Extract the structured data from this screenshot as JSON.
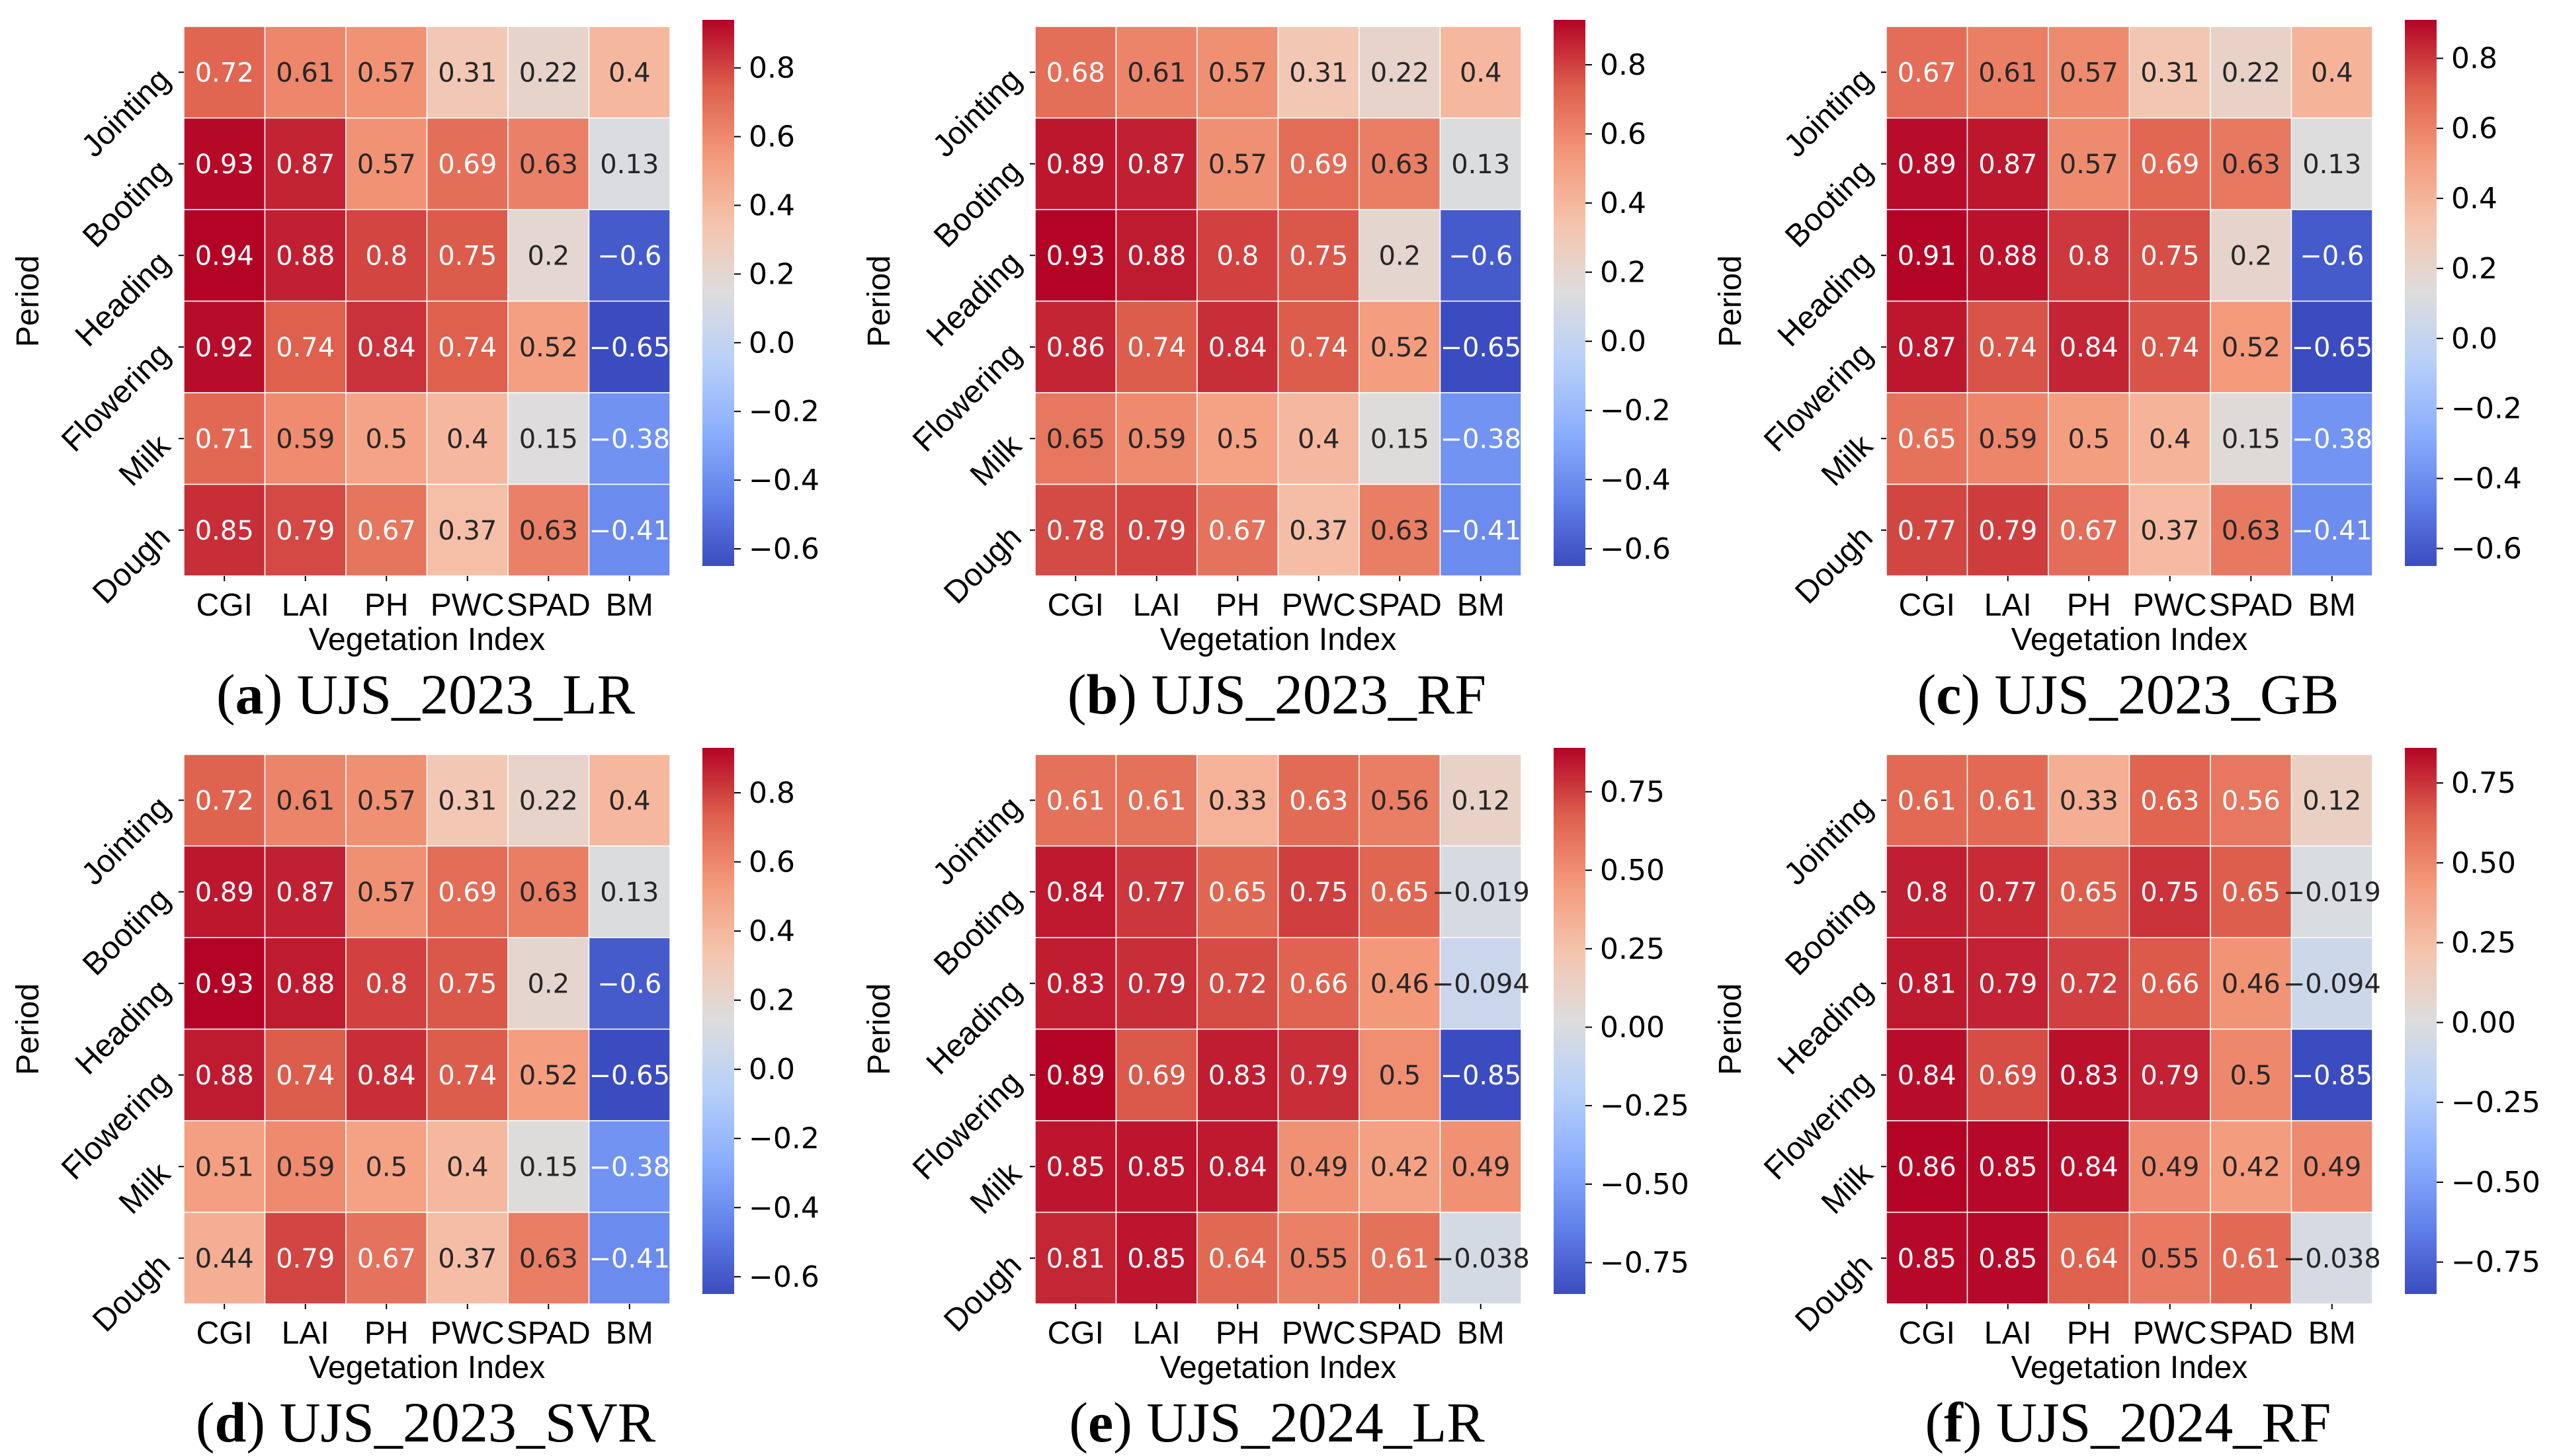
{
  "chart_data": [
    {
      "type": "heatmap",
      "caption_letter": "a",
      "caption_text": "UJS_2023_LR",
      "xlabel": "Vegetation Index",
      "ylabel": "Period",
      "columns": [
        "CGI",
        "LAI",
        "PH",
        "PWC",
        "SPAD",
        "BM"
      ],
      "rows": [
        "Jointing",
        "Booting",
        "Heading",
        "Flowering",
        "Milk",
        "Dough"
      ],
      "values": [
        [
          "0.72",
          "0.61",
          "0.57",
          "0.31",
          "0.22",
          "0.4"
        ],
        [
          "0.93",
          "0.87",
          "0.57",
          "0.69",
          "0.63",
          "0.13"
        ],
        [
          "0.94",
          "0.88",
          "0.8",
          "0.75",
          "0.2",
          "-0.6"
        ],
        [
          "0.92",
          "0.74",
          "0.84",
          "0.74",
          "0.52",
          "-0.65"
        ],
        [
          "0.71",
          "0.59",
          "0.5",
          "0.4",
          "0.15",
          "-0.38"
        ],
        [
          "0.85",
          "0.79",
          "0.67",
          "0.37",
          "0.63",
          "-0.41"
        ]
      ],
      "vmin": -0.65,
      "vmax": 0.94,
      "colorbar_ticks": [
        0.8,
        0.6,
        0.4,
        0.2,
        0.0,
        -0.2,
        -0.4,
        -0.6
      ],
      "colorbar_tick_labels": [
        "0.8",
        "0.6",
        "0.4",
        "0.2",
        "0.0",
        "−0.2",
        "−0.4",
        "−0.6"
      ]
    },
    {
      "type": "heatmap",
      "caption_letter": "b",
      "caption_text": "UJS_2023_RF",
      "xlabel": "Vegetation Index",
      "ylabel": "Period",
      "columns": [
        "CGI",
        "LAI",
        "PH",
        "PWC",
        "SPAD",
        "BM"
      ],
      "rows": [
        "Jointing",
        "Booting",
        "Heading",
        "Flowering",
        "Milk",
        "Dough"
      ],
      "values": [
        [
          "0.68",
          "0.61",
          "0.57",
          "0.31",
          "0.22",
          "0.4"
        ],
        [
          "0.89",
          "0.87",
          "0.57",
          "0.69",
          "0.63",
          "0.13"
        ],
        [
          "0.93",
          "0.88",
          "0.8",
          "0.75",
          "0.2",
          "-0.6"
        ],
        [
          "0.86",
          "0.74",
          "0.84",
          "0.74",
          "0.52",
          "-0.65"
        ],
        [
          "0.65",
          "0.59",
          "0.5",
          "0.4",
          "0.15",
          "-0.38"
        ],
        [
          "0.78",
          "0.79",
          "0.67",
          "0.37",
          "0.63",
          "-0.41"
        ]
      ],
      "vmin": -0.65,
      "vmax": 0.93,
      "colorbar_ticks": [
        0.8,
        0.6,
        0.4,
        0.2,
        0.0,
        -0.2,
        -0.4,
        -0.6
      ],
      "colorbar_tick_labels": [
        "0.8",
        "0.6",
        "0.4",
        "0.2",
        "0.0",
        "−0.2",
        "−0.4",
        "−0.6"
      ]
    },
    {
      "type": "heatmap",
      "caption_letter": "c",
      "caption_text": "UJS_2023_GB",
      "xlabel": "Vegetation Index",
      "ylabel": "Period",
      "columns": [
        "CGI",
        "LAI",
        "PH",
        "PWC",
        "SPAD",
        "BM"
      ],
      "rows": [
        "Jointing",
        "Booting",
        "Heading",
        "Flowering",
        "Milk",
        "Dough"
      ],
      "values": [
        [
          "0.67",
          "0.61",
          "0.57",
          "0.31",
          "0.22",
          "0.4"
        ],
        [
          "0.89",
          "0.87",
          "0.57",
          "0.69",
          "0.63",
          "0.13"
        ],
        [
          "0.91",
          "0.88",
          "0.8",
          "0.75",
          "0.2",
          "-0.6"
        ],
        [
          "0.87",
          "0.74",
          "0.84",
          "0.74",
          "0.52",
          "-0.65"
        ],
        [
          "0.65",
          "0.59",
          "0.5",
          "0.4",
          "0.15",
          "-0.38"
        ],
        [
          "0.77",
          "0.79",
          "0.67",
          "0.37",
          "0.63",
          "-0.41"
        ]
      ],
      "vmin": -0.65,
      "vmax": 0.91,
      "colorbar_ticks": [
        0.8,
        0.6,
        0.4,
        0.2,
        0.0,
        -0.2,
        -0.4,
        -0.6
      ],
      "colorbar_tick_labels": [
        "0.8",
        "0.6",
        "0.4",
        "0.2",
        "0.0",
        "−0.2",
        "−0.4",
        "−0.6"
      ]
    },
    {
      "type": "heatmap",
      "caption_letter": "d",
      "caption_text": "UJS_2023_SVR",
      "xlabel": "Vegetation Index",
      "ylabel": "Period",
      "columns": [
        "CGI",
        "LAI",
        "PH",
        "PWC",
        "SPAD",
        "BM"
      ],
      "rows": [
        "Jointing",
        "Booting",
        "Heading",
        "Flowering",
        "Milk",
        "Dough"
      ],
      "values": [
        [
          "0.72",
          "0.61",
          "0.57",
          "0.31",
          "0.22",
          "0.4"
        ],
        [
          "0.89",
          "0.87",
          "0.57",
          "0.69",
          "0.63",
          "0.13"
        ],
        [
          "0.93",
          "0.88",
          "0.8",
          "0.75",
          "0.2",
          "-0.6"
        ],
        [
          "0.88",
          "0.74",
          "0.84",
          "0.74",
          "0.52",
          "-0.65"
        ],
        [
          "0.51",
          "0.59",
          "0.5",
          "0.4",
          "0.15",
          "-0.38"
        ],
        [
          "0.44",
          "0.79",
          "0.67",
          "0.37",
          "0.63",
          "-0.41"
        ]
      ],
      "vmin": -0.65,
      "vmax": 0.93,
      "colorbar_ticks": [
        0.8,
        0.6,
        0.4,
        0.2,
        0.0,
        -0.2,
        -0.4,
        -0.6
      ],
      "colorbar_tick_labels": [
        "0.8",
        "0.6",
        "0.4",
        "0.2",
        "0.0",
        "−0.2",
        "−0.4",
        "−0.6"
      ]
    },
    {
      "type": "heatmap",
      "caption_letter": "e",
      "caption_text": "UJS_2024_LR",
      "xlabel": "Vegetation Index",
      "ylabel": "Period",
      "columns": [
        "CGI",
        "LAI",
        "PH",
        "PWC",
        "SPAD",
        "BM"
      ],
      "rows": [
        "Jointing",
        "Booting",
        "Heading",
        "Flowering",
        "Milk",
        "Dough"
      ],
      "values": [
        [
          "0.61",
          "0.61",
          "0.33",
          "0.63",
          "0.56",
          "0.12"
        ],
        [
          "0.84",
          "0.77",
          "0.65",
          "0.75",
          "0.65",
          "-0.019"
        ],
        [
          "0.83",
          "0.79",
          "0.72",
          "0.66",
          "0.46",
          "-0.094"
        ],
        [
          "0.89",
          "0.69",
          "0.83",
          "0.79",
          "0.5",
          "-0.85"
        ],
        [
          "0.85",
          "0.85",
          "0.84",
          "0.49",
          "0.42",
          "0.49"
        ],
        [
          "0.81",
          "0.85",
          "0.64",
          "0.55",
          "0.61",
          "-0.038"
        ]
      ],
      "vmin": -0.85,
      "vmax": 0.89,
      "colorbar_ticks": [
        0.75,
        0.5,
        0.25,
        0.0,
        -0.25,
        -0.5,
        -0.75
      ],
      "colorbar_tick_labels": [
        "0.75",
        "0.50",
        "0.25",
        "0.00",
        "−0.25",
        "−0.50",
        "−0.75"
      ]
    },
    {
      "type": "heatmap",
      "caption_letter": "f",
      "caption_text": "UJS_2024_RF",
      "xlabel": "Vegetation Index",
      "ylabel": "Period",
      "columns": [
        "CGI",
        "LAI",
        "PH",
        "PWC",
        "SPAD",
        "BM"
      ],
      "rows": [
        "Jointing",
        "Booting",
        "Heading",
        "Flowering",
        "Milk",
        "Dough"
      ],
      "values": [
        [
          "0.61",
          "0.61",
          "0.33",
          "0.63",
          "0.56",
          "0.12"
        ],
        [
          "0.8",
          "0.77",
          "0.65",
          "0.75",
          "0.65",
          "-0.019"
        ],
        [
          "0.81",
          "0.79",
          "0.72",
          "0.66",
          "0.46",
          "-0.094"
        ],
        [
          "0.84",
          "0.69",
          "0.83",
          "0.79",
          "0.5",
          "-0.85"
        ],
        [
          "0.86",
          "0.85",
          "0.84",
          "0.49",
          "0.42",
          "0.49"
        ],
        [
          "0.85",
          "0.85",
          "0.64",
          "0.55",
          "0.61",
          "-0.038"
        ]
      ],
      "vmin": -0.85,
      "vmax": 0.86,
      "colorbar_ticks": [
        0.75,
        0.5,
        0.25,
        0.0,
        -0.25,
        -0.5,
        -0.75
      ],
      "colorbar_tick_labels": [
        "0.75",
        "0.50",
        "0.25",
        "0.00",
        "−0.25",
        "−0.50",
        "−0.75"
      ]
    }
  ]
}
